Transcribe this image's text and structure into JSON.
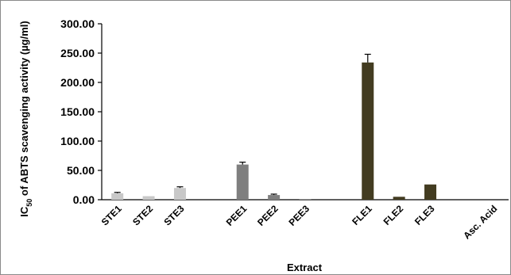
{
  "chart_data": {
    "type": "bar",
    "title": "",
    "xlabel": "Extract",
    "ylabel_parts": {
      "pre": "IC",
      "sub": "50",
      "post": " of ABTS scavenging activity (µg/ml)"
    },
    "ylim": [
      0,
      300
    ],
    "yticks": [
      "0.00",
      "50.00",
      "100.00",
      "150.00",
      "200.00",
      "250.00",
      "300.00"
    ],
    "grid": false,
    "legend": "none",
    "bars": [
      {
        "name": "STE1",
        "value": 11,
        "error": 1.5,
        "color": "#c8c8c8",
        "slot": 0
      },
      {
        "name": "STE2",
        "value": 6,
        "error": 0,
        "color": "#c8c8c8",
        "slot": 1
      },
      {
        "name": "STE3",
        "value": 20,
        "error": 2,
        "color": "#c8c8c8",
        "slot": 2
      },
      {
        "name": "PEE1",
        "value": 60,
        "error": 4,
        "color": "#7f7f7f",
        "slot": 4
      },
      {
        "name": "PEE2",
        "value": 8,
        "error": 1.5,
        "color": "#7f7f7f",
        "slot": 5
      },
      {
        "name": "PEE3",
        "value": 1,
        "error": 0,
        "color": "#7f7f7f",
        "slot": 6
      },
      {
        "name": "FLE1",
        "value": 234,
        "error": 14,
        "color": "#433c21",
        "slot": 8
      },
      {
        "name": "FLE2",
        "value": 5,
        "error": 0,
        "color": "#433c21",
        "slot": 9
      },
      {
        "name": "FLE3",
        "value": 26,
        "error": 0,
        "color": "#433c21",
        "slot": 10
      },
      {
        "name": "Asc. Acid",
        "value": 0,
        "error": 0,
        "color": "#433c21",
        "slot": 12
      }
    ]
  }
}
